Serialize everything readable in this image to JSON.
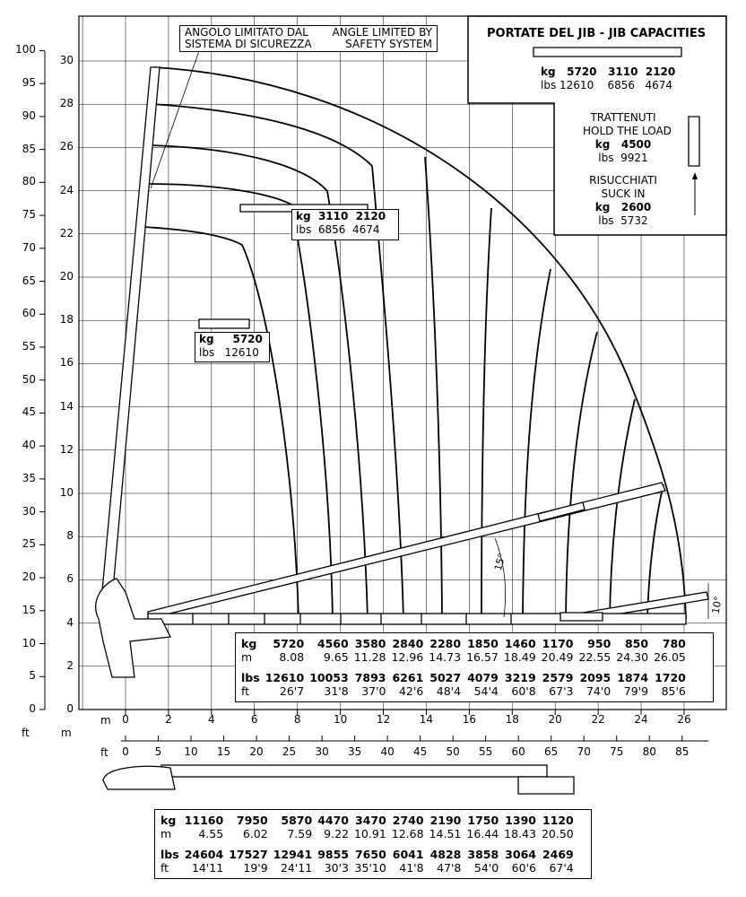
{
  "safety_note": {
    "it": [
      "ANGOLO LIMITATO DAL",
      "SISTEMA DI SICUREZZA"
    ],
    "en": [
      "ANGLE LIMITED BY",
      "SAFETY SYSTEM"
    ]
  },
  "jib_capacities": {
    "title": "PORTATE DEL JIB  -  JIB CAPACITIES",
    "kg_label": "kg",
    "lbs_label": "lbs",
    "kg": [
      "5720",
      "3110",
      "2120"
    ],
    "lbs": [
      "12610",
      "6856",
      "4674"
    ],
    "hold": {
      "it": "TRATTENUTI",
      "en": "HOLD THE LOAD",
      "kg": "4500",
      "lbs": "9921"
    },
    "suck": {
      "it": "RISUCCHIATI",
      "en": "SUCK IN",
      "kg": "2600",
      "lbs": "5732"
    }
  },
  "jib_label_mid": {
    "kg": [
      "3110",
      "2120"
    ],
    "lbs": [
      "6856",
      "4674"
    ]
  },
  "jib_label_low": {
    "kg": "5720",
    "lbs": "12610"
  },
  "angles": [
    "15°",
    "10°"
  ],
  "axes": {
    "m_unit": "m",
    "ft_unit": "ft",
    "left_ft": [
      "0",
      "5",
      "10",
      "15",
      "20",
      "25",
      "30",
      "35",
      "40",
      "45",
      "50",
      "55",
      "60",
      "65",
      "70",
      "75",
      "80",
      "85",
      "90",
      "95",
      "100"
    ],
    "left_m": [
      "0",
      "2",
      "4",
      "6",
      "8",
      "10",
      "12",
      "14",
      "16",
      "18",
      "20",
      "22",
      "24",
      "26",
      "28",
      "30"
    ],
    "bottom_m": [
      "0",
      "2",
      "4",
      "6",
      "8",
      "10",
      "12",
      "14",
      "16",
      "18",
      "20",
      "22",
      "24",
      "26"
    ],
    "bottom_ft": [
      "0",
      "5",
      "10",
      "15",
      "20",
      "25",
      "30",
      "35",
      "40",
      "45",
      "50",
      "55",
      "60",
      "65",
      "70",
      "75",
      "80",
      "85"
    ]
  },
  "main_table": {
    "kg": [
      "5720",
      "4560",
      "3580",
      "2840",
      "2280",
      "1850",
      "1460",
      "1170",
      "950",
      "850",
      "780"
    ],
    "m": [
      "8.08",
      "9.65",
      "11.28",
      "12.96",
      "14.73",
      "16.57",
      "18.49",
      "20.49",
      "22.55",
      "24.30",
      "26.05"
    ],
    "lbs": [
      "12610",
      "10053",
      "7893",
      "6261",
      "5027",
      "4079",
      "3219",
      "2579",
      "2095",
      "1874",
      "1720"
    ],
    "ft": [
      "26'7",
      "31'8",
      "37'0",
      "42'6",
      "48'4",
      "54'4",
      "60'8",
      "67'3",
      "74'0",
      "79'9",
      "85'6"
    ]
  },
  "bottom_table": {
    "kg": [
      "11160",
      "7950",
      "5870",
      "4470",
      "3470",
      "2740",
      "2190",
      "1750",
      "1390",
      "1120"
    ],
    "m": [
      "4.55",
      "6.02",
      "7.59",
      "9.22",
      "10.91",
      "12.68",
      "14.51",
      "16.44",
      "18.43",
      "20.50"
    ],
    "lbs": [
      "24604",
      "17527",
      "12941",
      "9855",
      "7650",
      "6041",
      "4828",
      "3858",
      "3064",
      "2469"
    ],
    "ft": [
      "14'11",
      "19'9",
      "24'11",
      "30'3",
      "35'10",
      "41'8",
      "47'8",
      "54'0",
      "60'6",
      "67'4"
    ]
  },
  "row_labels": {
    "kg": "kg",
    "m": "m",
    "lbs": "lbs",
    "ft": "ft"
  }
}
